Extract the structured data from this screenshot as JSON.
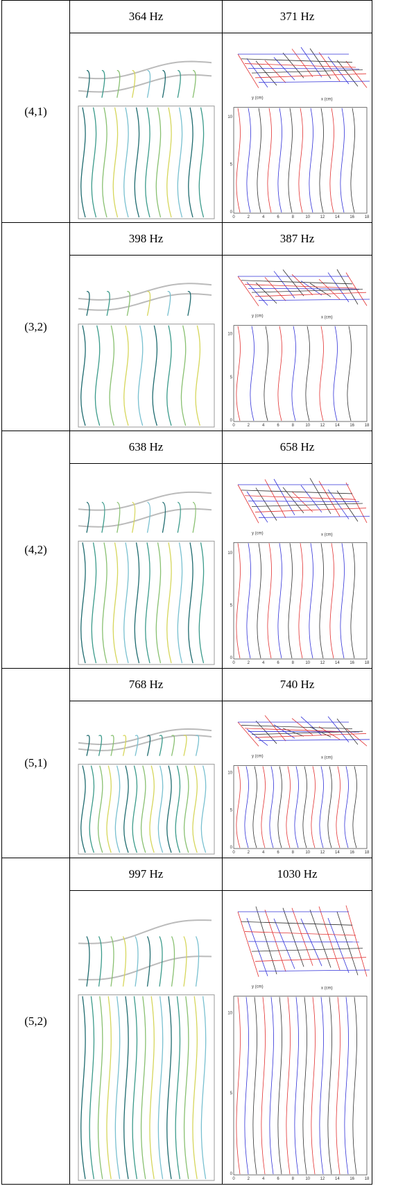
{
  "table": {
    "rows": [
      {
        "mode": "(4,1)",
        "frequencies": [
          "364 Hz",
          "371 Hz"
        ]
      },
      {
        "mode": "(3,2)",
        "frequencies": [
          "398 Hz",
          "387 Hz"
        ]
      },
      {
        "mode": "(4,2)",
        "frequencies": [
          "638 Hz",
          "658 Hz"
        ]
      },
      {
        "mode": "(5,1)",
        "frequencies": [
          "768 Hz",
          "740 Hz"
        ]
      },
      {
        "mode": "(5,2)",
        "frequencies": [
          "997 Hz",
          "1030 Hz"
        ]
      }
    ]
  },
  "plot_axes": {
    "x_label": "x (cm)",
    "y_label": "y (cm)",
    "contour_xticks": [
      "0",
      "2",
      "4",
      "6",
      "8",
      "10",
      "12",
      "14",
      "16",
      "18"
    ],
    "contour_yticks": [
      "0",
      "5",
      "10"
    ]
  }
}
